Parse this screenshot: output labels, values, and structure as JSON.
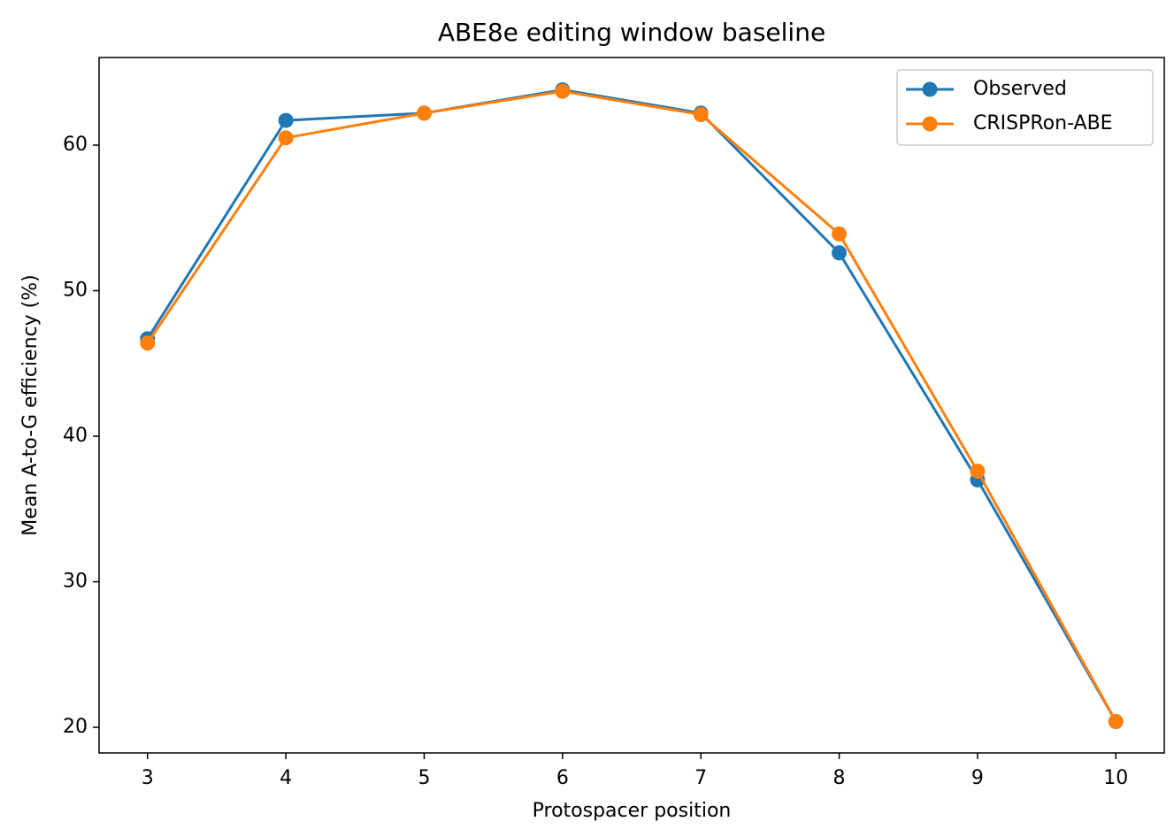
{
  "chart_data": {
    "type": "line",
    "title": "ABE8e editing window baseline",
    "xlabel": "Protospacer position",
    "ylabel": "Mean A-to-G efficiency (%)",
    "x": [
      3,
      4,
      5,
      6,
      7,
      8,
      9,
      10
    ],
    "series": [
      {
        "name": "Observed",
        "color": "#1f77b4",
        "values": [
          46.7,
          61.7,
          62.2,
          63.8,
          62.2,
          52.6,
          37.0,
          20.4
        ]
      },
      {
        "name": "CRISPRon-ABE",
        "color": "#ff7f0e",
        "values": [
          46.4,
          60.5,
          62.2,
          63.7,
          62.1,
          53.9,
          37.6,
          20.4
        ]
      }
    ],
    "xlim": [
      2.65,
      10.35
    ],
    "xticks": [
      3,
      4,
      5,
      6,
      7,
      8,
      9,
      10
    ],
    "ylim": [
      18.24,
      66.02
    ],
    "yticks": [
      20,
      30,
      40,
      50,
      60
    ],
    "grid": false,
    "legend": "upper right"
  }
}
